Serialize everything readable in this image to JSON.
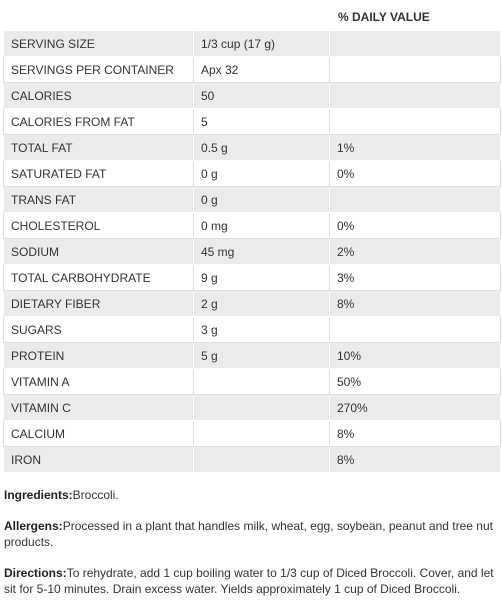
{
  "table": {
    "header": {
      "daily_value": "% DAILY VALUE"
    },
    "rows": [
      {
        "name": "SERVING SIZE",
        "amount": "1/3 cup (17 g)"
      },
      {
        "name": "SERVINGS PER CONTAINER",
        "amount": "Apx 32"
      },
      {
        "name": "CALORIES",
        "amount": "50"
      },
      {
        "name": "CALORIES FROM FAT",
        "amount": "5"
      },
      {
        "name": "TOTAL FAT",
        "amount": "0.5 g",
        "dv": "1%"
      },
      {
        "name": "SATURATED FAT",
        "amount": "0 g",
        "dv": "0%"
      },
      {
        "name": "TRANS FAT",
        "amount": "0 g"
      },
      {
        "name": "CHOLESTEROL",
        "amount": "0 mg",
        "dv": "0%"
      },
      {
        "name": "SODIUM",
        "amount": "45 mg",
        "dv": "2%"
      },
      {
        "name": "TOTAL CARBOHYDRATE",
        "amount": "9 g",
        "dv": "3%"
      },
      {
        "name": "DIETARY FIBER",
        "amount": "2 g",
        "dv": "8%"
      },
      {
        "name": "SUGARS",
        "amount": "3 g"
      },
      {
        "name": "PROTEIN",
        "amount": "5 g",
        "dv": "10%"
      },
      {
        "name": "VITAMIN A",
        "dv": "50%"
      },
      {
        "name": "VITAMIN C",
        "dv": "270%"
      },
      {
        "name": "CALCIUM",
        "dv": "8%"
      },
      {
        "name": "IRON",
        "dv": "8%"
      }
    ]
  },
  "notes": [
    {
      "label": "Ingredients:",
      "text": "Broccoli."
    },
    {
      "label": "Allergens:",
      "text": "Processed in a plant that handles milk, wheat, egg, soybean, peanut and tree nut products."
    },
    {
      "label": "Directions:",
      "text": "To rehydrate, add 1 cup boiling water to 1/3 cup of Diced Broccoli. Cover, and let sit for 5-10 minutes. Drain excess water. Yields approximately 1 cup of Diced Broccoli."
    }
  ]
}
